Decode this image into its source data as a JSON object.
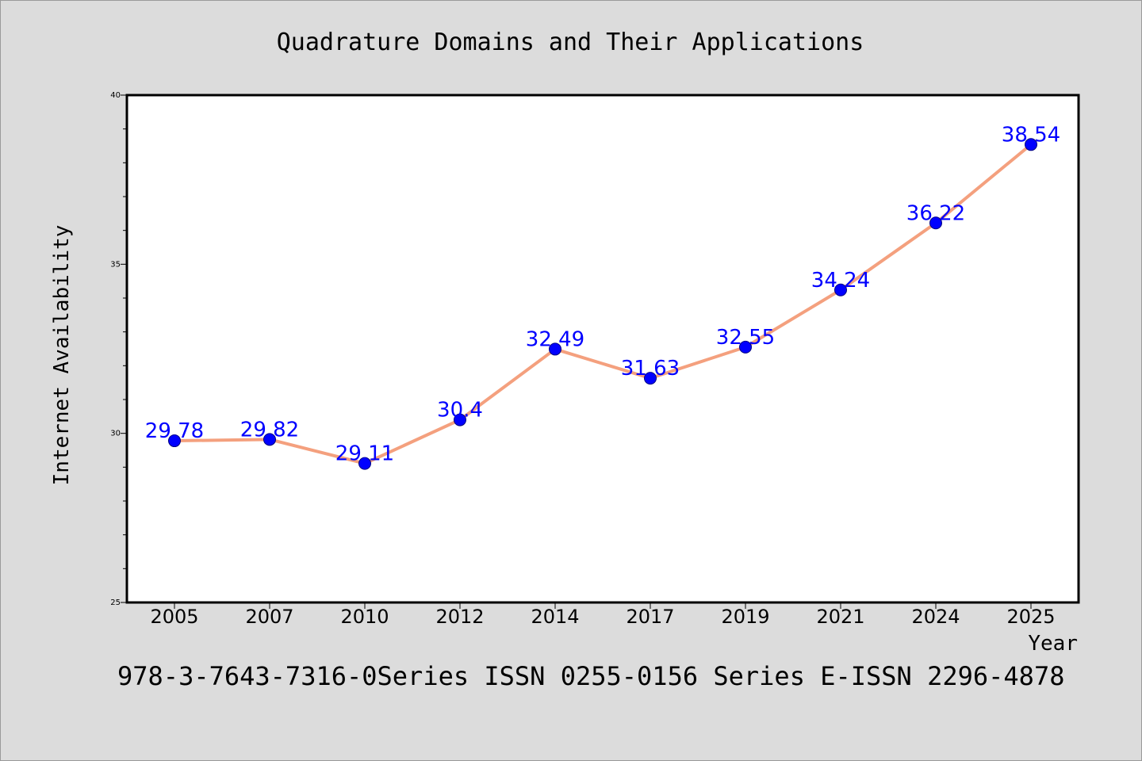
{
  "chart_data": {
    "type": "line",
    "title": "Quadrature Domains and Their Applications",
    "xlabel": "Year",
    "ylabel": "Internet Availability",
    "categories": [
      "2005",
      "2007",
      "2010",
      "2012",
      "2014",
      "2017",
      "2019",
      "2021",
      "2024",
      "2025"
    ],
    "values": [
      29.78,
      29.82,
      29.11,
      30.4,
      32.49,
      31.63,
      32.55,
      34.24,
      36.22,
      38.54
    ],
    "data_labels": [
      "29.78",
      "29.82",
      "29.11",
      "30.4",
      "32.49",
      "31.63",
      "32.55",
      "34.24",
      "36.22",
      "38.54"
    ],
    "ylim": [
      25,
      40
    ],
    "yticks": [
      25,
      30,
      35,
      40
    ],
    "grid": false,
    "line_color": "#f4a07e",
    "marker_color": "#0000ff",
    "label_color": "#0000ff"
  },
  "footer": "978-3-7643-7316-0Series ISSN 0255-0156 Series E-ISSN 2296-4878"
}
